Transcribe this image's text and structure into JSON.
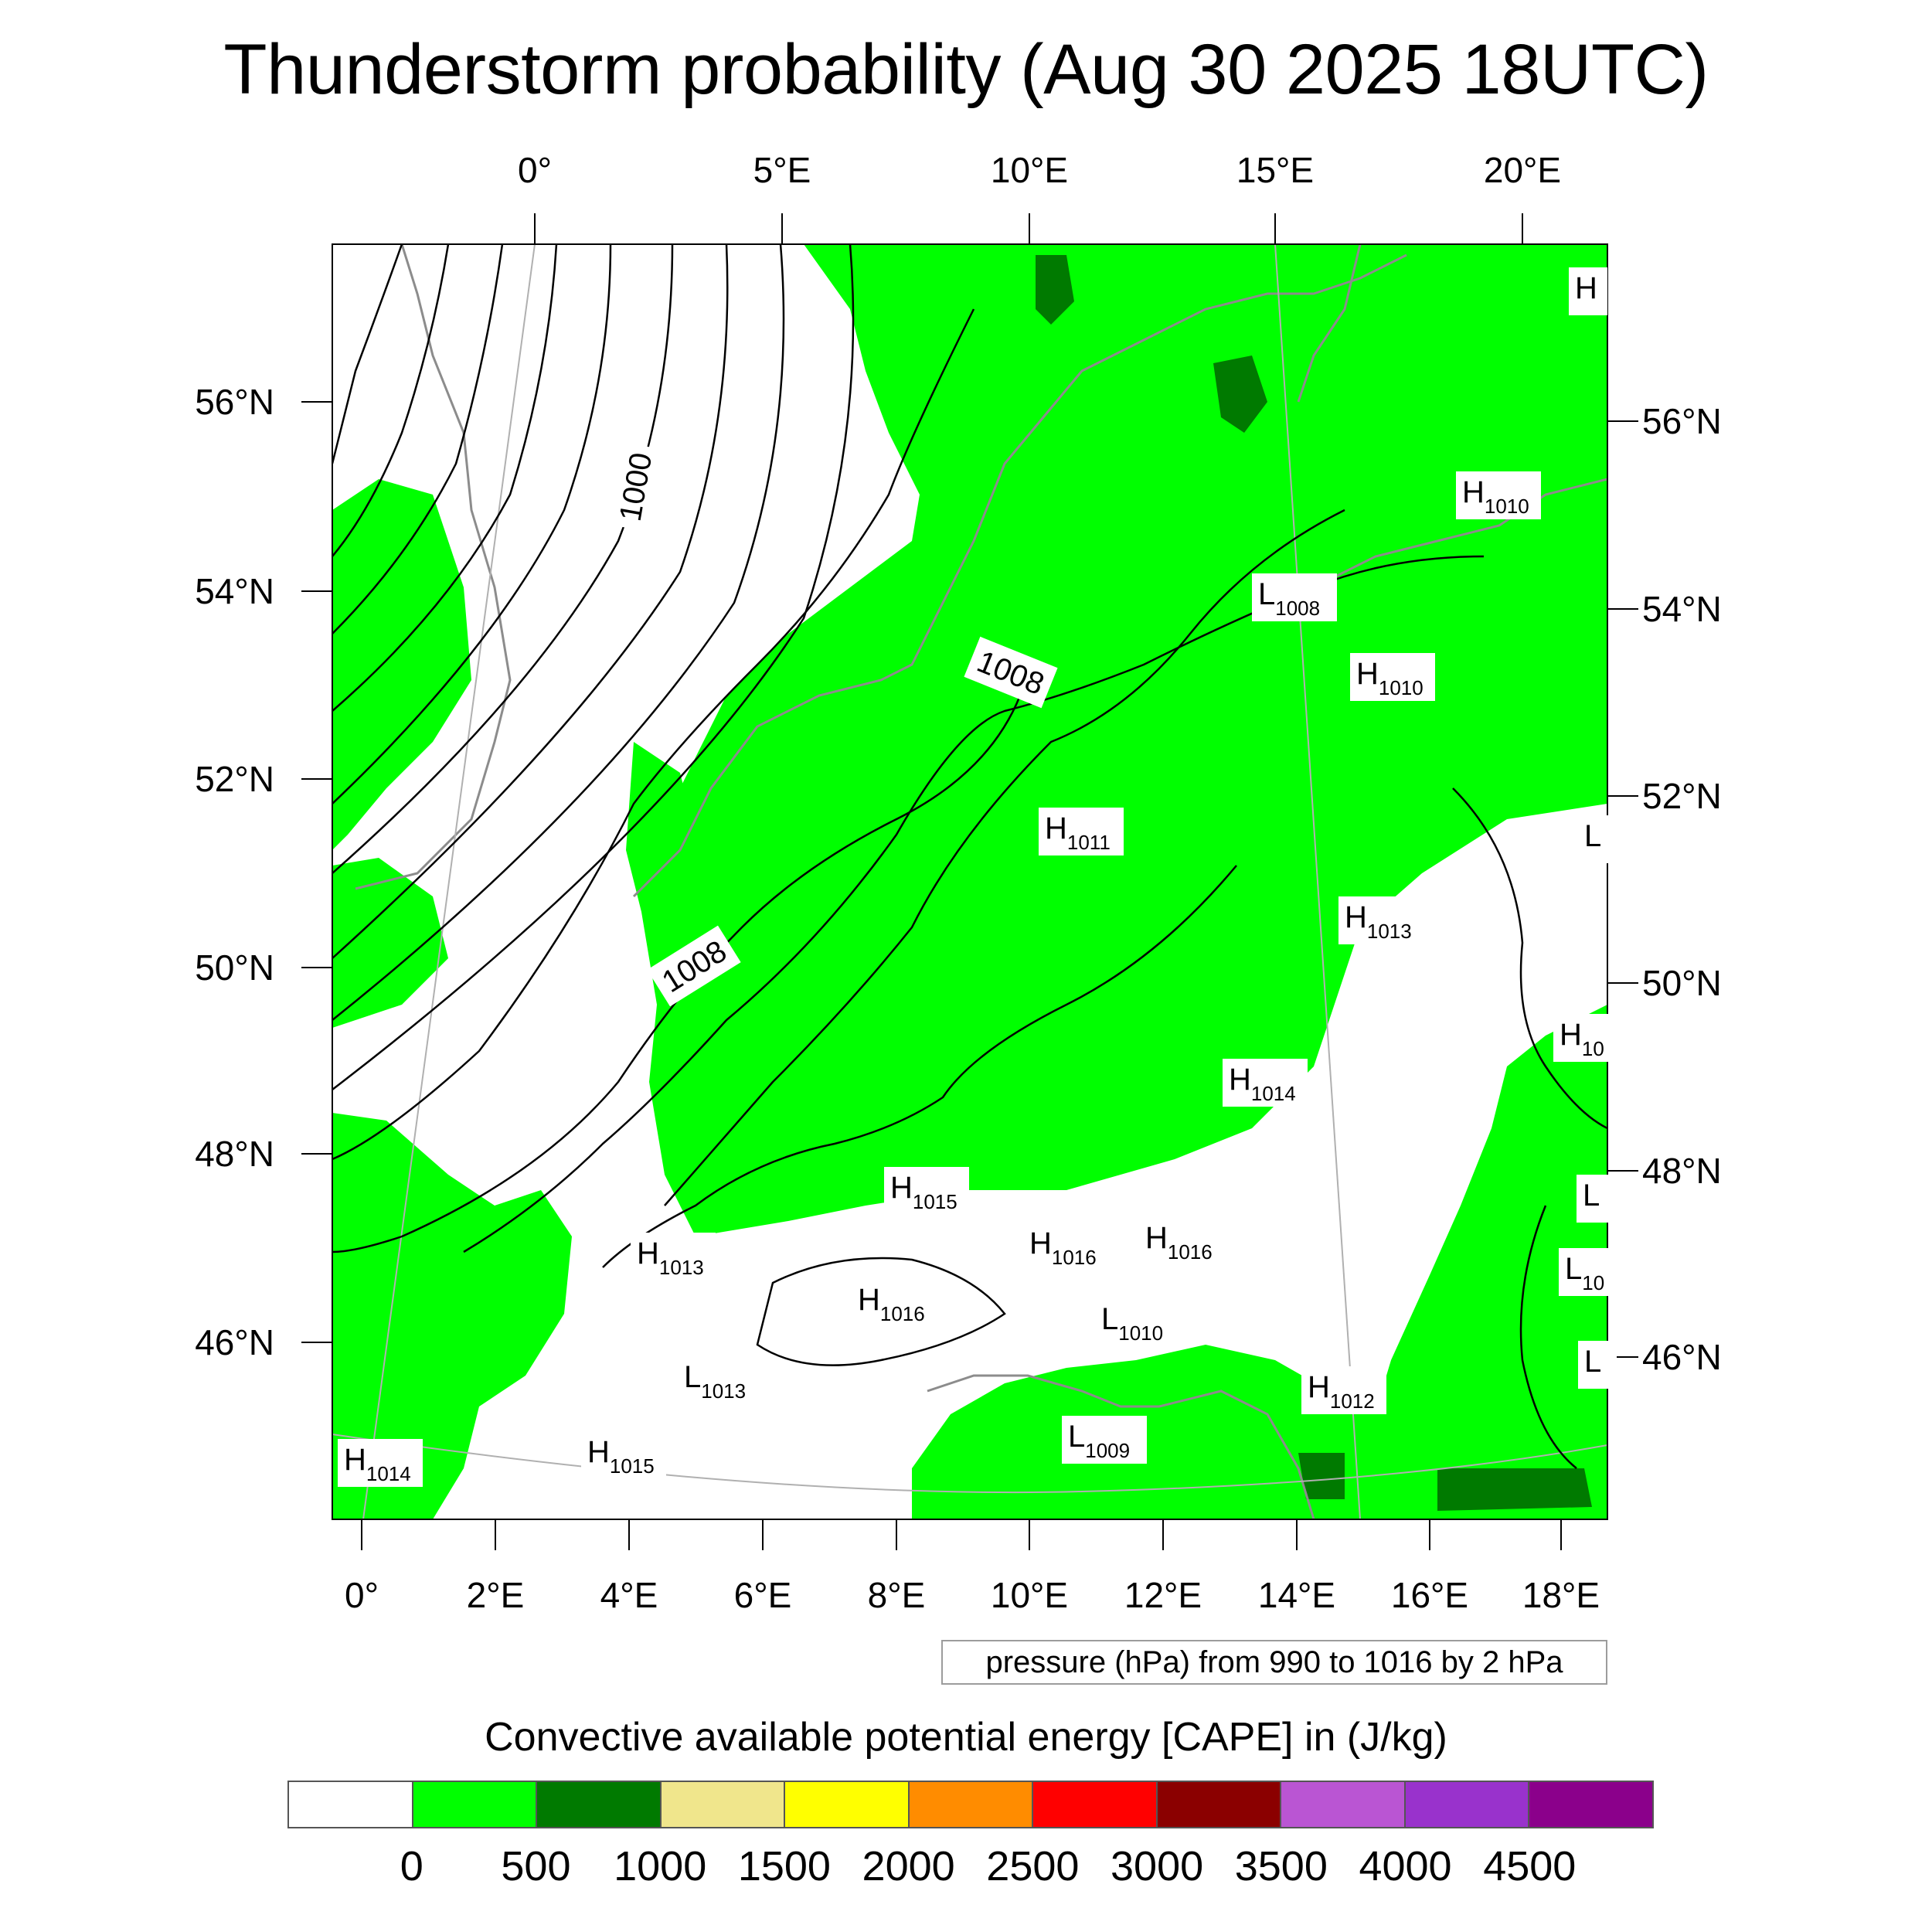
{
  "title": "Thunderstorm probability (Aug 30 2025 18UTC)",
  "map": {
    "top_lon_labels": [
      "0°",
      "5°E",
      "10°E",
      "15°E",
      "20°E"
    ],
    "bottom_lon_labels": [
      "0°",
      "2°E",
      "4°E",
      "6°E",
      "8°E",
      "10°E",
      "12°E",
      "14°E",
      "16°E",
      "18°E"
    ],
    "left_lat_labels": [
      "56°N",
      "54°N",
      "52°N",
      "50°N",
      "48°N",
      "46°N"
    ],
    "right_lat_labels": [
      "56°N",
      "54°N",
      "52°N",
      "50°N",
      "48°N",
      "46°N"
    ],
    "contour_labels": [
      "1000",
      "1008",
      "1008"
    ],
    "pressure_centers": [
      {
        "t": "H",
        "v": ""
      },
      {
        "t": "H",
        "v": "1010"
      },
      {
        "t": "L",
        "v": "1008"
      },
      {
        "t": "H",
        "v": "1010"
      },
      {
        "t": "H",
        "v": "1011"
      },
      {
        "t": "L",
        "v": ""
      },
      {
        "t": "H",
        "v": "1013"
      },
      {
        "t": "H",
        "v": "10"
      },
      {
        "t": "H",
        "v": "1014"
      },
      {
        "t": "H",
        "v": "1015"
      },
      {
        "t": "L",
        "v": ""
      },
      {
        "t": "H",
        "v": "1013"
      },
      {
        "t": "H",
        "v": "1016"
      },
      {
        "t": "H",
        "v": "1016"
      },
      {
        "t": "L",
        "v": "10"
      },
      {
        "t": "H",
        "v": "1016"
      },
      {
        "t": "L",
        "v": "1010"
      },
      {
        "t": "L",
        "v": ""
      },
      {
        "t": "L",
        "v": "1013"
      },
      {
        "t": "H",
        "v": "1012"
      },
      {
        "t": "H",
        "v": "1014"
      },
      {
        "t": "H",
        "v": "1015"
      },
      {
        "t": "L",
        "v": "1009"
      }
    ],
    "colors": {
      "cape_0_500": "#00ff00",
      "cape_500_1000": "#007a00",
      "isobar": "#000000",
      "coast": "#8c8c8c"
    }
  },
  "legend_note": "pressure (hPa) from 990 to 1016 by 2 hPa",
  "colorbar": {
    "title": "Convective available potential energy [CAPE] in (J/kg)",
    "colors": [
      "#ffffff",
      "#00ff00",
      "#007a00",
      "#f0e68c",
      "#ffff00",
      "#ff8c00",
      "#ff0000",
      "#8b0000",
      "#ba55d3",
      "#9932cc",
      "#8b008b"
    ],
    "labels": [
      "0",
      "500",
      "1000",
      "1500",
      "2000",
      "2500",
      "3000",
      "3500",
      "4000",
      "4500"
    ]
  }
}
